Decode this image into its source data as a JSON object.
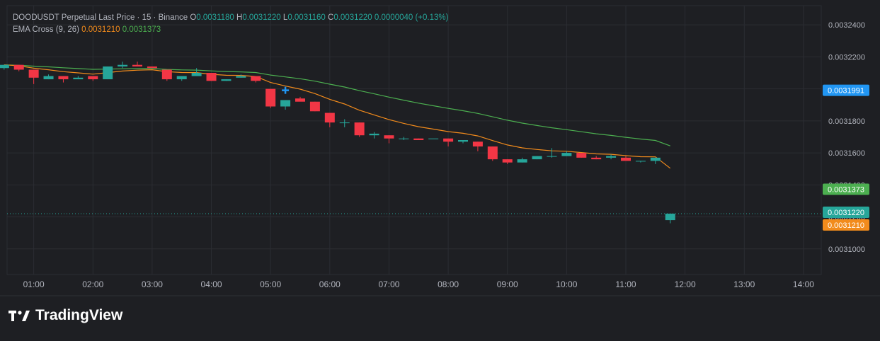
{
  "legend": {
    "symbol_line": "DOODUSDT Perpetual Last Price · 15 · Binance",
    "open_label": "O",
    "open": "0.0031180",
    "high_label": "H",
    "high": "0.0031220",
    "low_label": "L",
    "low": "0.0031160",
    "close_label": "C",
    "close": "0.0031220",
    "change": "0.0000040 (+0.13%)",
    "indicator_name": "EMA Cross (9, 26)",
    "ema_fast": "0.0031210",
    "ema_slow": "0.0031373"
  },
  "brand": {
    "name": "TradingView"
  },
  "colors": {
    "background": "#1e1f23",
    "grid": "#2b2d33",
    "up": "#26a69a",
    "down": "#f23645",
    "ema_fast": "#f28b1c",
    "ema_slow": "#4caf50",
    "crosshair_marker": "#2196f3",
    "price_line": "#26a69a"
  },
  "chart_data": {
    "type": "candlestick",
    "symbol": "DOODUSDT",
    "interval": "15",
    "exchange": "Binance",
    "x_ticks": [
      "01:00",
      "02:00",
      "03:00",
      "04:00",
      "05:00",
      "06:00",
      "07:00",
      "08:00",
      "09:00",
      "10:00",
      "11:00",
      "12:00",
      "13:00",
      "14:00"
    ],
    "y_ticks": [
      "0.0031000",
      "0.0031200",
      "0.0031400",
      "0.0031600",
      "0.0031800",
      "0.0032000",
      "0.0032200",
      "0.0032400"
    ],
    "ylim": [
      0.003084,
      0.003252
    ],
    "candles": [
      {
        "t": "00:30",
        "o": 0.003213,
        "h": 0.003215,
        "l": 0.003212,
        "c": 0.003215
      },
      {
        "t": "00:45",
        "o": 0.003215,
        "h": 0.003215,
        "l": 0.003211,
        "c": 0.003212
      },
      {
        "t": "01:00",
        "o": 0.003212,
        "h": 0.003212,
        "l": 0.003203,
        "c": 0.003207
      },
      {
        "t": "01:15",
        "o": 0.003206,
        "h": 0.003209,
        "l": 0.003206,
        "c": 0.003208
      },
      {
        "t": "01:30",
        "o": 0.003208,
        "h": 0.003208,
        "l": 0.003204,
        "c": 0.003206
      },
      {
        "t": "01:45",
        "o": 0.003206,
        "h": 0.003208,
        "l": 0.003206,
        "c": 0.003207
      },
      {
        "t": "02:00",
        "o": 0.003208,
        "h": 0.003208,
        "l": 0.003205,
        "c": 0.003206
      },
      {
        "t": "02:15",
        "o": 0.003206,
        "h": 0.003214,
        "l": 0.003206,
        "c": 0.003214
      },
      {
        "t": "02:30",
        "o": 0.003214,
        "h": 0.003217,
        "l": 0.003213,
        "c": 0.003215
      },
      {
        "t": "02:45",
        "o": 0.003215,
        "h": 0.003217,
        "l": 0.003214,
        "c": 0.003214
      },
      {
        "t": "03:00",
        "o": 0.003214,
        "h": 0.003214,
        "l": 0.003213,
        "c": 0.003213
      },
      {
        "t": "03:15",
        "o": 0.003212,
        "h": 0.003212,
        "l": 0.003205,
        "c": 0.003206
      },
      {
        "t": "03:30",
        "o": 0.003206,
        "h": 0.003208,
        "l": 0.003205,
        "c": 0.003208
      },
      {
        "t": "03:45",
        "o": 0.003208,
        "h": 0.003213,
        "l": 0.003208,
        "c": 0.00321
      },
      {
        "t": "04:00",
        "o": 0.00321,
        "h": 0.00321,
        "l": 0.003205,
        "c": 0.003205
      },
      {
        "t": "04:15",
        "o": 0.003205,
        "h": 0.003206,
        "l": 0.003205,
        "c": 0.003206
      },
      {
        "t": "04:30",
        "o": 0.003207,
        "h": 0.003209,
        "l": 0.003207,
        "c": 0.003208
      },
      {
        "t": "04:45",
        "o": 0.003208,
        "h": 0.003208,
        "l": 0.003204,
        "c": 0.003205
      },
      {
        "t": "05:00",
        "o": 0.0032,
        "h": 0.0032,
        "l": 0.003188,
        "c": 0.003189
      },
      {
        "t": "05:15",
        "o": 0.003189,
        "h": 0.003193,
        "l": 0.003187,
        "c": 0.003193
      },
      {
        "t": "05:30",
        "o": 0.003194,
        "h": 0.003195,
        "l": 0.003193,
        "c": 0.003192
      },
      {
        "t": "05:45",
        "o": 0.003192,
        "h": 0.003192,
        "l": 0.003186,
        "c": 0.003186
      },
      {
        "t": "06:00",
        "o": 0.003185,
        "h": 0.003185,
        "l": 0.003176,
        "c": 0.003179
      },
      {
        "t": "06:15",
        "o": 0.003179,
        "h": 0.003181,
        "l": 0.003176,
        "c": 0.003179
      },
      {
        "t": "06:30",
        "o": 0.003179,
        "h": 0.003179,
        "l": 0.00317,
        "c": 0.003171
      },
      {
        "t": "06:45",
        "o": 0.003171,
        "h": 0.003173,
        "l": 0.003169,
        "c": 0.003172
      },
      {
        "t": "07:00",
        "o": 0.003171,
        "h": 0.003171,
        "l": 0.003166,
        "c": 0.003169
      },
      {
        "t": "07:15",
        "o": 0.003169,
        "h": 0.00317,
        "l": 0.003168,
        "c": 0.003169
      },
      {
        "t": "07:30",
        "o": 0.003169,
        "h": 0.003169,
        "l": 0.003168,
        "c": 0.003168
      },
      {
        "t": "07:45",
        "o": 0.003169,
        "h": 0.003169,
        "l": 0.003169,
        "c": 0.003169
      },
      {
        "t": "08:00",
        "o": 0.003169,
        "h": 0.003169,
        "l": 0.003164,
        "c": 0.003167
      },
      {
        "t": "08:15",
        "o": 0.003167,
        "h": 0.003168,
        "l": 0.003166,
        "c": 0.003168
      },
      {
        "t": "08:30",
        "o": 0.003167,
        "h": 0.003167,
        "l": 0.003161,
        "c": 0.003164
      },
      {
        "t": "08:45",
        "o": 0.003164,
        "h": 0.003164,
        "l": 0.003155,
        "c": 0.003156
      },
      {
        "t": "09:00",
        "o": 0.003156,
        "h": 0.003156,
        "l": 0.003153,
        "c": 0.003154
      },
      {
        "t": "09:15",
        "o": 0.003154,
        "h": 0.003157,
        "l": 0.003154,
        "c": 0.003156
      },
      {
        "t": "09:30",
        "o": 0.003156,
        "h": 0.003158,
        "l": 0.003156,
        "c": 0.003158
      },
      {
        "t": "09:45",
        "o": 0.003158,
        "h": 0.003163,
        "l": 0.003157,
        "c": 0.003158
      },
      {
        "t": "10:00",
        "o": 0.003158,
        "h": 0.003161,
        "l": 0.003158,
        "c": 0.00316
      },
      {
        "t": "10:15",
        "o": 0.00316,
        "h": 0.00316,
        "l": 0.003157,
        "c": 0.003157
      },
      {
        "t": "10:30",
        "o": 0.003157,
        "h": 0.003158,
        "l": 0.003156,
        "c": 0.003156
      },
      {
        "t": "10:45",
        "o": 0.003157,
        "h": 0.003159,
        "l": 0.003156,
        "c": 0.003158
      },
      {
        "t": "11:00",
        "o": 0.003157,
        "h": 0.003158,
        "l": 0.003156,
        "c": 0.003155
      },
      {
        "t": "11:15",
        "o": 0.003155,
        "h": 0.003155,
        "l": 0.003154,
        "c": 0.003155
      },
      {
        "t": "11:30",
        "o": 0.003155,
        "h": 0.003157,
        "l": 0.003153,
        "c": 0.003157
      },
      {
        "t": "11:45",
        "o": 0.003118,
        "h": 0.003122,
        "l": 0.003116,
        "c": 0.003122
      }
    ],
    "series": [
      {
        "name": "EMA Cross (9, 26) fast",
        "last_value": 0.003121
      },
      {
        "name": "EMA Cross (9, 26) slow",
        "last_value": 0.0031373
      }
    ],
    "price_labels": [
      {
        "value": "0.0031991",
        "kind": "marker"
      },
      {
        "value": "0.0031373",
        "kind": "ema_slow"
      },
      {
        "value": "0.0031220",
        "kind": "last_price"
      },
      {
        "value": "0.0031210",
        "kind": "ema_fast"
      }
    ]
  }
}
